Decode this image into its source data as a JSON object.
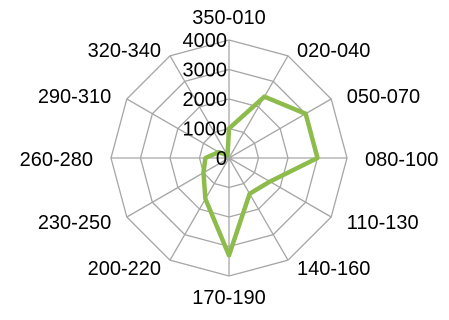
{
  "chart_data": {
    "type": "radar",
    "categories": [
      "350-010",
      "020-040",
      "050-070",
      "080-100",
      "110-130",
      "140-160",
      "170-190",
      "200-220",
      "230-250",
      "260-280",
      "290-310",
      "320-340"
    ],
    "series": [
      {
        "values": [
          1000,
          2400,
          3000,
          3000,
          1600,
          1400,
          3300,
          1600,
          1000,
          800,
          400,
          100
        ]
      }
    ],
    "ticks": [
      0,
      1000,
      2000,
      3000,
      4000
    ],
    "rlim": [
      0,
      4000
    ],
    "grid": true,
    "legend": "none",
    "colors": {
      "series": "#8ebc4c",
      "grid": "#a6a6a6"
    }
  }
}
